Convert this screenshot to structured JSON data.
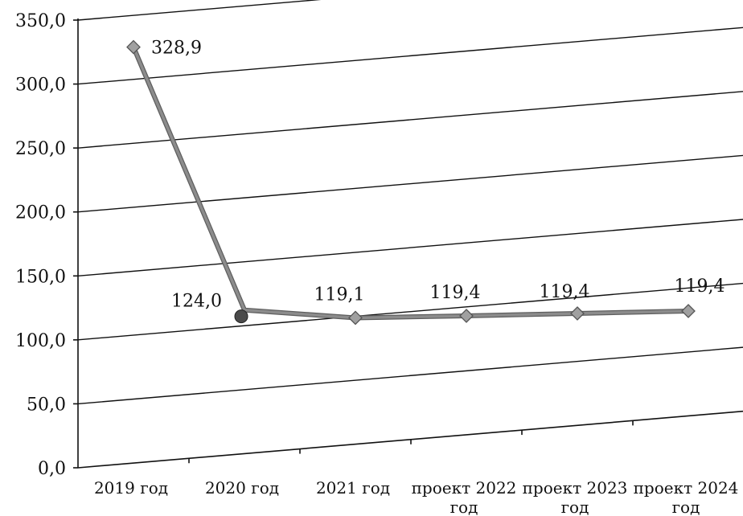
{
  "chart_data": {
    "type": "line",
    "title": "",
    "xlabel": "",
    "ylabel": "",
    "categories": [
      [
        "2019 год"
      ],
      [
        "2020 год"
      ],
      [
        "2021 год"
      ],
      [
        "проект 2022",
        "год"
      ],
      [
        "проект 2023",
        "год"
      ],
      [
        "проект 2024",
        "год"
      ]
    ],
    "series": [
      {
        "values": [
          328.9,
          124.0,
          119.1,
          119.4,
          119.4,
          119.4
        ],
        "data_labels": [
          "328,9",
          "124,0",
          "119,1",
          "119,4",
          "119,4",
          "119,4"
        ]
      }
    ],
    "y_ticks": [
      "0,0",
      "50,0",
      "100,0",
      "150,0",
      "200,0",
      "250,0",
      "300,0",
      "350,0"
    ],
    "ylim": [
      0,
      350
    ],
    "grid": true,
    "legend": "none",
    "colors": {
      "line": "#8c8c8c",
      "marker": "#a0a0a0",
      "marker_highlight": "#4a4a4a",
      "grid": "#111111"
    }
  }
}
